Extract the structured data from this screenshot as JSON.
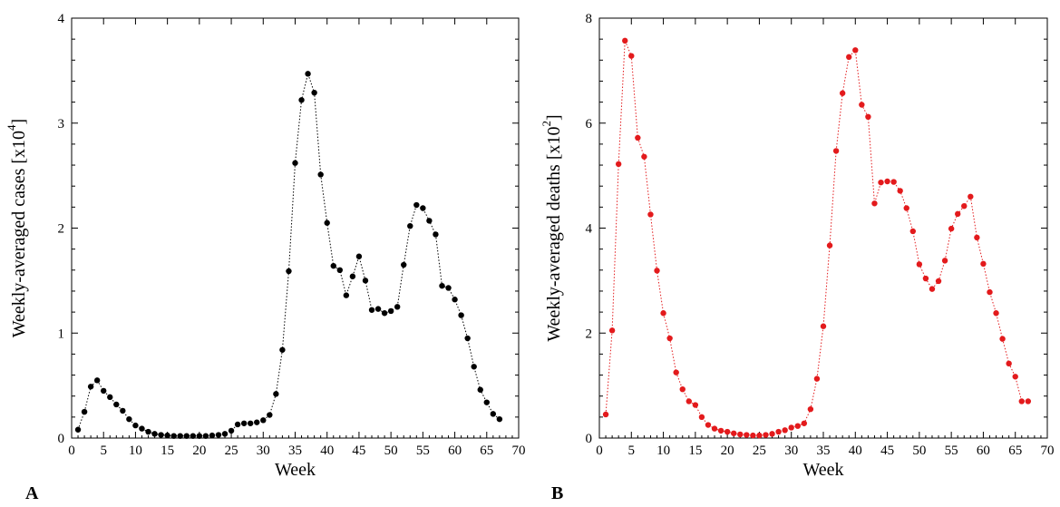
{
  "chart_data": [
    {
      "type": "line",
      "panel_label": "A",
      "xlabel": "Week",
      "ylabel": "Weekly-averaged cases [x10",
      "ylabel_exponent": "4",
      "ylabel_close": "]",
      "xlim": [
        0,
        70
      ],
      "ylim": [
        0,
        4
      ],
      "xticks": [
        0,
        5,
        10,
        15,
        20,
        25,
        30,
        35,
        40,
        45,
        50,
        55,
        60,
        65,
        70
      ],
      "yticks": [
        0,
        1,
        2,
        3,
        4
      ],
      "grid": false,
      "color": "#000000",
      "line_style": "dotted",
      "marker": "circle",
      "series": [
        {
          "x": [
            1,
            2,
            3,
            4,
            5,
            6,
            7,
            8,
            9,
            10,
            11,
            12,
            13,
            14,
            15,
            16,
            17,
            18,
            19,
            20,
            21,
            22,
            23,
            24,
            25,
            26,
            27,
            28,
            29,
            30,
            31,
            32,
            33,
            34,
            35,
            36,
            37,
            38,
            39,
            40,
            41,
            42,
            43,
            44,
            45,
            46,
            47,
            48,
            49,
            50,
            51,
            52,
            53,
            54,
            55,
            56,
            57,
            58,
            59,
            60,
            61,
            62,
            63,
            64,
            65,
            66,
            67
          ],
          "y": [
            0.08,
            0.25,
            0.49,
            0.55,
            0.45,
            0.39,
            0.32,
            0.26,
            0.18,
            0.12,
            0.09,
            0.06,
            0.04,
            0.03,
            0.025,
            0.02,
            0.02,
            0.02,
            0.02,
            0.02,
            0.02,
            0.025,
            0.03,
            0.04,
            0.07,
            0.13,
            0.14,
            0.14,
            0.15,
            0.17,
            0.22,
            0.42,
            0.84,
            1.59,
            2.62,
            3.22,
            3.47,
            3.29,
            2.51,
            2.05,
            1.64,
            1.6,
            1.36,
            1.54,
            1.73,
            1.5,
            1.22,
            1.23,
            1.19,
            1.21,
            1.25,
            1.65,
            2.02,
            2.22,
            2.19,
            2.07,
            1.94,
            1.45,
            1.43,
            1.32,
            1.17,
            0.95,
            0.68,
            0.46,
            0.34,
            0.23,
            0.18
          ]
        }
      ]
    },
    {
      "type": "line",
      "panel_label": "B",
      "xlabel": "Week",
      "ylabel": "Weekly-averaged deaths [x10",
      "ylabel_exponent": "2",
      "ylabel_close": "]",
      "xlim": [
        0,
        70
      ],
      "ylim": [
        0,
        8
      ],
      "xticks": [
        0,
        5,
        10,
        15,
        20,
        25,
        30,
        35,
        40,
        45,
        50,
        55,
        60,
        65,
        70
      ],
      "yticks": [
        0,
        2,
        4,
        6,
        8
      ],
      "grid": false,
      "color": "#e31a1c",
      "line_style": "dotted",
      "marker": "circle",
      "series": [
        {
          "x": [
            1,
            2,
            3,
            4,
            5,
            6,
            7,
            8,
            9,
            10,
            11,
            12,
            13,
            14,
            15,
            16,
            17,
            18,
            19,
            20,
            21,
            22,
            23,
            24,
            25,
            26,
            27,
            28,
            29,
            30,
            31,
            32,
            33,
            34,
            35,
            36,
            37,
            38,
            39,
            40,
            41,
            42,
            43,
            44,
            45,
            46,
            47,
            48,
            49,
            50,
            51,
            52,
            53,
            54,
            55,
            56,
            57,
            58,
            59,
            60,
            61,
            62,
            63,
            64,
            65,
            66,
            67
          ],
          "y": [
            0.45,
            2.05,
            5.22,
            7.57,
            7.28,
            5.72,
            5.36,
            4.26,
            3.19,
            2.38,
            1.9,
            1.25,
            0.93,
            0.7,
            0.63,
            0.4,
            0.25,
            0.18,
            0.14,
            0.12,
            0.09,
            0.07,
            0.06,
            0.05,
            0.05,
            0.06,
            0.08,
            0.12,
            0.15,
            0.2,
            0.23,
            0.28,
            0.55,
            1.13,
            2.13,
            3.67,
            5.47,
            6.57,
            7.26,
            7.39,
            6.35,
            6.12,
            4.47,
            4.87,
            4.89,
            4.88,
            4.71,
            4.38,
            3.94,
            3.31,
            3.04,
            2.84,
            2.99,
            3.38,
            3.99,
            4.27,
            4.42,
            4.6,
            3.82,
            3.32,
            2.78,
            2.38,
            1.89,
            1.42,
            1.17,
            0.7,
            0.7
          ]
        }
      ]
    }
  ]
}
